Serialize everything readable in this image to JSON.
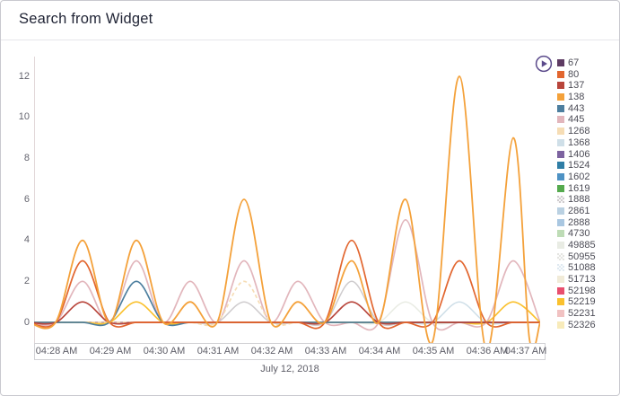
{
  "widget": {
    "title": "Search from Widget"
  },
  "header": {
    "play_button": {
      "icon": "play-circle-icon",
      "color": "#5b4a8b"
    }
  },
  "colors": {
    "widget_border": "#c9c9cf",
    "divider": "#e7e7ea",
    "title_text": "#212536",
    "axis_line": "#e2d7d8",
    "zero_line": "#c5a3a5",
    "tick_text": "#64646e",
    "legend_text": "#4c4c56",
    "x_box_border": "#d2d2d6"
  },
  "chart_data": {
    "type": "line",
    "title": "Search from Widget",
    "grid": false,
    "legend_position": "right",
    "x_axis": {
      "tick_labels": [
        "04:28 AM",
        "04:29 AM",
        "04:30 AM",
        "04:31 AM",
        "04:32 AM",
        "04:33 AM",
        "04:34 AM",
        "04:35 AM",
        "04:36 AM",
        "04:37 AM"
      ],
      "date_label": "July 12, 2018"
    },
    "y_axis": {
      "tick_labels": [
        "0",
        "2",
        "4",
        "6",
        "8",
        "10",
        "12"
      ],
      "range": [
        0,
        12
      ]
    },
    "peak_times": [
      "04:28:30",
      "04:29:30",
      "04:30:30",
      "04:31:30",
      "04:32:30",
      "04:33:30",
      "04:34:30",
      "04:35:30",
      "04:36:30"
    ],
    "series": [
      {
        "name": "67",
        "color": "#5e3b63",
        "pattern": false,
        "peaks": [
          0,
          0,
          0,
          0,
          0,
          0,
          0,
          0,
          0
        ]
      },
      {
        "name": "80",
        "color": "#e2662f",
        "pattern": false,
        "peaks": [
          3,
          0,
          0,
          0,
          0,
          4,
          0,
          3,
          0
        ]
      },
      {
        "name": "137",
        "color": "#b8453b",
        "pattern": false,
        "peaks": [
          1,
          0,
          0,
          0,
          0,
          1,
          0,
          0,
          0
        ]
      },
      {
        "name": "138",
        "color": "#f4a13a",
        "pattern": false,
        "peaks": [
          4,
          4,
          1,
          6,
          1,
          3,
          6,
          12,
          9
        ],
        "extra_dips": {
          "7": -0.95,
          "8": -1.35,
          "8.8": -0.8
        }
      },
      {
        "name": "443",
        "color": "#4d7f9f",
        "pattern": false,
        "peaks": [
          0,
          2,
          0,
          0,
          0,
          0,
          0,
          0,
          0
        ]
      },
      {
        "name": "445",
        "color": "#e2b6bc",
        "pattern": false,
        "peaks": [
          2,
          3,
          2,
          3,
          2,
          0,
          5,
          0,
          3
        ]
      },
      {
        "name": "1268",
        "color": "#f6ddb5",
        "pattern": false,
        "dash": "4 3",
        "peaks": [
          0,
          0,
          0,
          2,
          0,
          0,
          0,
          0,
          0
        ]
      },
      {
        "name": "1368",
        "color": "#cfdfe8",
        "pattern": false,
        "peaks": [
          0,
          0,
          0,
          0,
          0,
          0,
          0,
          1,
          0
        ]
      },
      {
        "name": "1406",
        "color": "#7d63a0",
        "pattern": false,
        "peaks": [
          0,
          0,
          0,
          0,
          0,
          0,
          0,
          0,
          0
        ]
      },
      {
        "name": "1524",
        "color": "#2f7ea6",
        "pattern": false,
        "peaks": [
          0,
          0,
          0,
          0,
          0,
          0,
          0,
          0,
          0
        ]
      },
      {
        "name": "1602",
        "color": "#4e92c4",
        "pattern": false,
        "peaks": [
          0,
          0,
          0,
          0,
          0,
          0,
          0,
          0,
          0
        ]
      },
      {
        "name": "1619",
        "color": "#55aa4e",
        "pattern": false,
        "peaks": [
          0,
          0,
          0,
          0,
          0,
          0,
          0,
          0,
          0
        ]
      },
      {
        "name": "1888",
        "color": "#cfccce",
        "pattern": true,
        "peaks": [
          0,
          0,
          0,
          1,
          0,
          2,
          0,
          0,
          0
        ]
      },
      {
        "name": "2861",
        "color": "#bad1e2",
        "pattern": false,
        "peaks": [
          0,
          0,
          0,
          0,
          0,
          0,
          0,
          0,
          0
        ]
      },
      {
        "name": "2888",
        "color": "#a9c7e1",
        "pattern": false,
        "peaks": [
          0,
          0,
          0,
          0,
          0,
          0,
          0,
          0,
          0
        ]
      },
      {
        "name": "4730",
        "color": "#bedcb6",
        "pattern": false,
        "peaks": [
          0,
          0,
          0,
          0,
          0,
          0,
          0,
          0,
          0
        ]
      },
      {
        "name": "49885",
        "color": "#e9ece4",
        "pattern": false,
        "peaks": [
          0,
          0,
          0,
          0,
          0,
          0,
          1,
          0,
          0
        ]
      },
      {
        "name": "50955",
        "color": "#e5e5e1",
        "pattern": true,
        "peaks": [
          0,
          0,
          0,
          0,
          0,
          0,
          0,
          0,
          0
        ]
      },
      {
        "name": "51088",
        "color": "#dfe9f1",
        "pattern": true,
        "peaks": [
          0,
          0,
          0,
          0,
          0,
          0,
          0,
          0,
          0
        ]
      },
      {
        "name": "51713",
        "color": "#f1ebd8",
        "pattern": false,
        "peaks": [
          0,
          0,
          0,
          0,
          0,
          0,
          0,
          0,
          0
        ]
      },
      {
        "name": "52198",
        "color": "#e94f6e",
        "pattern": false,
        "peaks": [
          0,
          0,
          0,
          0,
          0,
          0,
          0,
          0,
          0
        ]
      },
      {
        "name": "52219",
        "color": "#fac12e",
        "pattern": false,
        "peaks": [
          0,
          1,
          0,
          0,
          0,
          0,
          0,
          0,
          1
        ]
      },
      {
        "name": "52231",
        "color": "#f1c2c2",
        "pattern": false,
        "peaks": [
          0,
          0,
          0,
          0,
          0,
          0,
          0,
          0,
          0
        ]
      },
      {
        "name": "52326",
        "color": "#f8ebba",
        "pattern": false,
        "peaks": [
          0,
          0,
          0,
          0,
          0,
          0,
          0,
          0,
          0
        ]
      }
    ]
  }
}
